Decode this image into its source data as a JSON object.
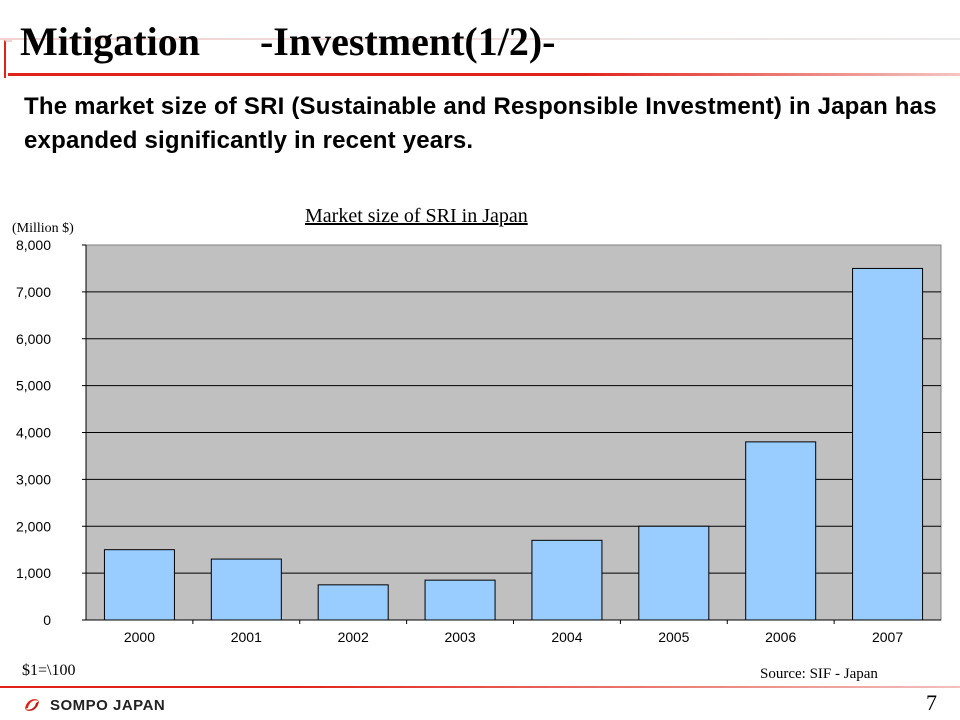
{
  "slide": {
    "title": "Mitigation      -Investment(1/2)-",
    "subtitle": "The market size of SRI (Sustainable and Responsible Investment) in Japan has expanded significantly in recent years.",
    "footnote_left": "$1=\\100",
    "footnote_right": "Source: SIF - Japan",
    "logo_text": "SOMPO JAPAN",
    "page_number": "7",
    "colors": {
      "accent": "#e2231a",
      "bar_fill": "#99ccff",
      "plot_bg": "#c0c0c0"
    }
  },
  "chart_data": {
    "type": "bar",
    "title": "Market size of SRI in Japan",
    "unit_label": "(Million $)",
    "categories": [
      "2000",
      "2001",
      "2002",
      "2003",
      "2004",
      "2005",
      "2006",
      "2007"
    ],
    "values": [
      1500,
      1300,
      750,
      850,
      1700,
      2000,
      3800,
      7500
    ],
    "ylim": [
      0,
      8000
    ],
    "yticks": [
      0,
      1000,
      2000,
      3000,
      4000,
      5000,
      6000,
      7000,
      8000
    ],
    "ytick_labels": [
      "0",
      "1,000",
      "2,000",
      "3,000",
      "4,000",
      "5,000",
      "6,000",
      "7,000",
      "8,000"
    ],
    "grid": true,
    "legend": "none"
  }
}
